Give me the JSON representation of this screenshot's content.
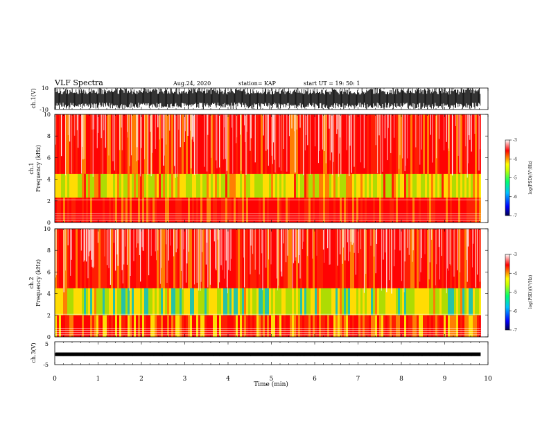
{
  "header": {
    "title": "VLF Spectra",
    "date": "Aug.24, 2020",
    "station": "station= KAP",
    "start": "start  UT  =    19: 50: 1"
  },
  "chart_data": [
    {
      "type": "line",
      "panel": "ch1-waveform",
      "ylabel": "ch.1(V)",
      "ylim": [
        -10,
        10
      ],
      "yticks": [
        "10",
        "-10"
      ],
      "xlim": [
        0,
        10
      ],
      "data_xmax": 9.83,
      "envelope_v": [
        -10,
        10
      ],
      "color": "#000000"
    },
    {
      "type": "heatmap",
      "panel": "ch1-spectrogram",
      "ylabel": "ch.1\nFrequency (kHz)",
      "ylim": [
        0,
        10
      ],
      "yticks": [
        "0",
        "2",
        "4",
        "6",
        "8",
        "10"
      ],
      "xlim": [
        0,
        10
      ],
      "data_xmax": 9.83,
      "band_levels_khz": [
        [
          0,
          2.3,
          -3.3
        ],
        [
          2.3,
          4.5,
          -4.3
        ],
        [
          4.5,
          10,
          -3.2
        ]
      ],
      "colorbar": {
        "label": "log(PSD)(V²/Hz)",
        "range": [
          -7,
          -3
        ],
        "ticks": [
          "-3",
          "-4",
          "-5",
          "-6",
          "-7"
        ]
      }
    },
    {
      "type": "heatmap",
      "panel": "ch2-spectrogram",
      "ylabel": "ch.2\nFrequency (kHz)",
      "ylim": [
        0,
        10
      ],
      "yticks": [
        "0",
        "2",
        "4",
        "6",
        "8",
        "10"
      ],
      "xlim": [
        0,
        10
      ],
      "data_xmax": 9.83,
      "band_levels_khz": [
        [
          0,
          2.0,
          -3.6
        ],
        [
          2.0,
          4.5,
          -4.6
        ],
        [
          4.5,
          10,
          -3.3
        ]
      ],
      "colorbar": {
        "label": "log(PSD)(V²/Hz)",
        "range": [
          -7,
          -3
        ],
        "ticks": [
          "-3",
          "-4",
          "-5",
          "-6",
          "-7"
        ]
      }
    },
    {
      "type": "line",
      "panel": "ch3-waveform",
      "ylabel": "ch.3(V)",
      "ylim": [
        -5,
        5
      ],
      "yticks": [
        "5",
        "-5"
      ],
      "xlim": [
        0,
        10
      ],
      "data_xmax": 9.83,
      "envelope_v": [
        -1.3,
        0.3
      ],
      "color": "#000000"
    }
  ],
  "xaxis": {
    "label": "Time (min)",
    "ticks": [
      "0",
      "1",
      "2",
      "3",
      "4",
      "5",
      "6",
      "7",
      "8",
      "9",
      "10"
    ]
  },
  "colors": {
    "colormap": [
      "#000080",
      "#0000ff",
      "#00a0ff",
      "#00ff80",
      "#b0ff00",
      "#ffff00",
      "#ff8000",
      "#ff0000",
      "#ffffff"
    ]
  }
}
